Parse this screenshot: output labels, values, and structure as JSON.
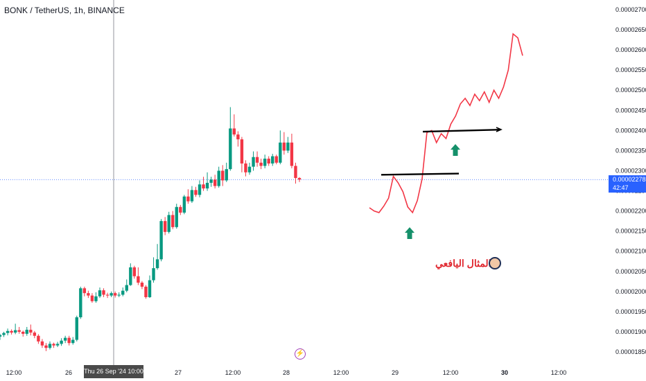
{
  "header": {
    "title": "BONK / TetherUS, 1h, BINANCE"
  },
  "author": {
    "name": "المثال اليافعي",
    "avatar_icon": "avatar-icon"
  },
  "current_price": {
    "label": "0.00002278",
    "countdown": "42:47",
    "value": 2.278e-05,
    "color": "#2962ff"
  },
  "crosshair": {
    "time_label": "Thu 26 Sep '24 10:00"
  },
  "icons": {
    "flash": "lightning-icon"
  },
  "colors": {
    "up": "#089981",
    "down": "#f23645",
    "projection": "#f23645",
    "arrows": "#15906a",
    "levels": "#000000"
  },
  "chart_data": {
    "type": "candlestick",
    "symbol": "BONK / TetherUS",
    "interval": "1h",
    "exchange": "BINANCE",
    "ylim": [
      1.83e-05,
      2.7e-05
    ],
    "y_ticks": [
      "0.00002700",
      "0.00002650",
      "0.00002600",
      "0.00002550",
      "0.00002500",
      "0.00002450",
      "0.00002400",
      "0.00002350",
      "0.00002300",
      "0.00002250",
      "0.00002200",
      "0.00002150",
      "0.00002100",
      "0.00002050",
      "0.00002000",
      "0.00001950",
      "0.00001900",
      "0.00001850"
    ],
    "x_ticks": [
      "12:00",
      "26",
      "12:00",
      "27",
      "12:00",
      "28",
      "12:00",
      "29",
      "12:00",
      "30",
      "12:00"
    ],
    "candles": [
      [
        1888,
        1892,
        1880,
        1895
      ],
      [
        1892,
        1897,
        1887,
        1900
      ],
      [
        1897,
        1902,
        1891,
        1908
      ],
      [
        1902,
        1898,
        1893,
        1906
      ],
      [
        1898,
        1904,
        1894,
        1920
      ],
      [
        1904,
        1900,
        1895,
        1912
      ],
      [
        1900,
        1895,
        1888,
        1903
      ],
      [
        1895,
        1905,
        1890,
        1912
      ],
      [
        1905,
        1898,
        1891,
        1918
      ],
      [
        1898,
        1890,
        1884,
        1902
      ],
      [
        1890,
        1876,
        1870,
        1894
      ],
      [
        1876,
        1866,
        1860,
        1882
      ],
      [
        1866,
        1860,
        1852,
        1872
      ],
      [
        1860,
        1870,
        1856,
        1876
      ],
      [
        1870,
        1866,
        1860,
        1873
      ],
      [
        1866,
        1870,
        1862,
        1875
      ],
      [
        1870,
        1878,
        1865,
        1884
      ],
      [
        1878,
        1885,
        1872,
        1890
      ],
      [
        1885,
        1872,
        1866,
        1890
      ],
      [
        1872,
        1880,
        1868,
        1887
      ],
      [
        1880,
        1936,
        1876,
        1940
      ],
      [
        1936,
        2008,
        1932,
        2012
      ],
      [
        2008,
        1996,
        1988,
        2012
      ],
      [
        1996,
        1990,
        1984,
        2002
      ],
      [
        1990,
        1976,
        1972,
        1996
      ],
      [
        1976,
        1988,
        1972,
        1998
      ],
      [
        1988,
        2003,
        1984,
        2010
      ],
      [
        2003,
        1992,
        1986,
        2008
      ],
      [
        1992,
        1990,
        1984,
        1997
      ],
      [
        1990,
        1996,
        1986,
        2000
      ],
      [
        1996,
        1990,
        1985,
        2000
      ],
      [
        1990,
        1992,
        1986,
        1998
      ],
      [
        1992,
        2002,
        1988,
        2010
      ],
      [
        2002,
        2016,
        1998,
        2030
      ],
      [
        2016,
        2060,
        2014,
        2070
      ],
      [
        2060,
        2038,
        2032,
        2064
      ],
      [
        2038,
        2022,
        2016,
        2060
      ],
      [
        2022,
        2012,
        2006,
        2026
      ],
      [
        2012,
        1986,
        1982,
        2016
      ],
      [
        1986,
        2028,
        1984,
        2040
      ],
      [
        2028,
        2058,
        2022,
        2085
      ],
      [
        2058,
        2080,
        2054,
        2118
      ],
      [
        2080,
        2175,
        2075,
        2180
      ],
      [
        2175,
        2148,
        2140,
        2185
      ],
      [
        2148,
        2190,
        2144,
        2198
      ],
      [
        2190,
        2160,
        2155,
        2200
      ],
      [
        2160,
        2210,
        2156,
        2218
      ],
      [
        2210,
        2196,
        2190,
        2215
      ],
      [
        2196,
        2236,
        2192,
        2240
      ],
      [
        2236,
        2224,
        2218,
        2254
      ],
      [
        2224,
        2252,
        2220,
        2262
      ],
      [
        2252,
        2240,
        2235,
        2260
      ],
      [
        2240,
        2266,
        2234,
        2276
      ],
      [
        2266,
        2256,
        2250,
        2285
      ],
      [
        2256,
        2270,
        2250,
        2296
      ],
      [
        2270,
        2278,
        2260,
        2285
      ],
      [
        2278,
        2262,
        2256,
        2290
      ],
      [
        2262,
        2300,
        2258,
        2310
      ],
      [
        2300,
        2276,
        2262,
        2314
      ],
      [
        2276,
        2304,
        2272,
        2320
      ],
      [
        2304,
        2405,
        2300,
        2458
      ],
      [
        2405,
        2390,
        2385,
        2440
      ],
      [
        2390,
        2378,
        2360,
        2398
      ],
      [
        2378,
        2318,
        2296,
        2384
      ],
      [
        2318,
        2296,
        2286,
        2326
      ],
      [
        2296,
        2310,
        2290,
        2320
      ],
      [
        2310,
        2334,
        2300,
        2348
      ],
      [
        2334,
        2320,
        2310,
        2348
      ],
      [
        2320,
        2312,
        2304,
        2330
      ],
      [
        2312,
        2330,
        2306,
        2340
      ],
      [
        2330,
        2318,
        2312,
        2336
      ],
      [
        2318,
        2336,
        2312,
        2342
      ],
      [
        2336,
        2320,
        2316,
        2340
      ],
      [
        2320,
        2370,
        2316,
        2400
      ],
      [
        2370,
        2350,
        2340,
        2396
      ],
      [
        2350,
        2370,
        2344,
        2384
      ],
      [
        2370,
        2312,
        2306,
        2392
      ],
      [
        2312,
        2282,
        2268,
        2320
      ],
      [
        2282,
        2278,
        2272,
        2284
      ]
    ],
    "projection_path": [
      [
        2208,
        0
      ],
      [
        2200,
        1
      ],
      [
        2196,
        2
      ],
      [
        2212,
        3
      ],
      [
        2232,
        4
      ],
      [
        2286,
        5
      ],
      [
        2270,
        6
      ],
      [
        2248,
        7
      ],
      [
        2210,
        8
      ],
      [
        2196,
        9
      ],
      [
        2226,
        10
      ],
      [
        2280,
        11
      ],
      [
        2395,
        12
      ],
      [
        2400,
        13
      ],
      [
        2370,
        14
      ],
      [
        2392,
        15
      ],
      [
        2380,
        16
      ],
      [
        2416,
        17
      ],
      [
        2436,
        18
      ],
      [
        2466,
        19
      ],
      [
        2480,
        20
      ],
      [
        2462,
        21
      ],
      [
        2490,
        22
      ],
      [
        2474,
        23
      ],
      [
        2496,
        24
      ],
      [
        2470,
        25
      ],
      [
        2500,
        26
      ],
      [
        2480,
        27
      ],
      [
        2508,
        28
      ],
      [
        2550,
        29
      ],
      [
        2640,
        30
      ],
      [
        2630,
        31
      ],
      [
        2586,
        32
      ]
    ],
    "levels": [
      {
        "from": 0,
        "to": 1,
        "value_start": 2.29e-05,
        "value_end": 2.293e-05
      },
      {
        "from": 0,
        "to": 1,
        "value_start": 2.397e-05,
        "value_end": 2.402e-05
      }
    ],
    "arrows": [
      {
        "direction": "up",
        "position": "below support after dip"
      },
      {
        "direction": "up",
        "position": "after breakout"
      }
    ]
  }
}
